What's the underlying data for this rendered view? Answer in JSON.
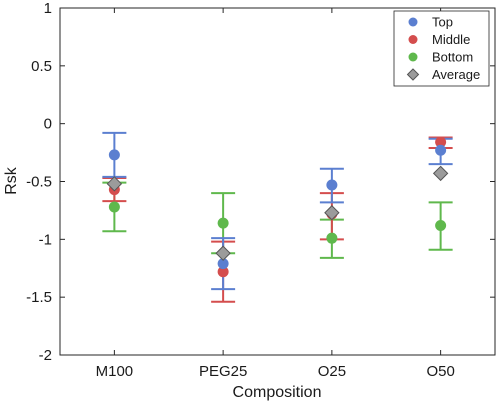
{
  "chart_data": {
    "type": "scatter",
    "xlabel": "Composition",
    "ylabel": "Rsk",
    "categories": [
      "M100",
      "PEG25",
      "O25",
      "O50"
    ],
    "ylim": [
      -2,
      1
    ],
    "yticks": [
      "1",
      "0.5",
      "0",
      "-0.5",
      "-1",
      "-1.5",
      "-2"
    ],
    "ytick_values": [
      1,
      0.5,
      0,
      -0.5,
      -1,
      -1.5,
      -2
    ],
    "legend_position": "top-right",
    "series": [
      {
        "name": "Top",
        "color": "#5b7fd0",
        "marker": "circle",
        "values": [
          -0.27,
          -1.21,
          -0.53,
          -0.23
        ],
        "err_low": [
          -0.46,
          -1.43,
          -0.68,
          -0.35
        ],
        "err_high": [
          -0.08,
          -0.99,
          -0.39,
          -0.13
        ]
      },
      {
        "name": "Middle",
        "color": "#d44d4d",
        "marker": "circle",
        "values": [
          -0.57,
          -1.28,
          -0.78,
          -0.16
        ],
        "err_low": [
          -0.67,
          -1.54,
          -1.0,
          -0.21
        ],
        "err_high": [
          -0.47,
          -1.02,
          -0.6,
          -0.12
        ]
      },
      {
        "name": "Bottom",
        "color": "#5fb84c",
        "marker": "circle",
        "values": [
          -0.72,
          -0.86,
          -0.99,
          -0.88
        ],
        "err_low": [
          -0.93,
          -1.12,
          -1.16,
          -1.09
        ],
        "err_high": [
          -0.51,
          -0.6,
          -0.83,
          -0.68
        ]
      },
      {
        "name": "Average",
        "color": "#9b9b9b",
        "marker": "diamond",
        "values": [
          -0.52,
          -1.12,
          -0.77,
          -0.43
        ]
      }
    ]
  }
}
